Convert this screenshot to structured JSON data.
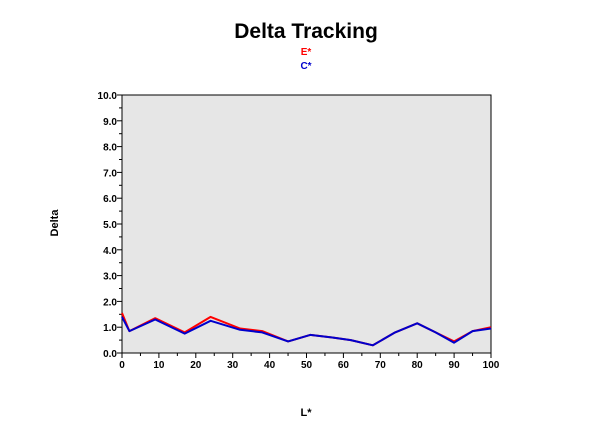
{
  "chart_data": {
    "type": "line",
    "title": "Delta Tracking",
    "xlabel": "L*",
    "ylabel": "Delta",
    "xlim": [
      0,
      100
    ],
    "ylim": [
      0,
      10
    ],
    "x_ticks": [
      "0",
      "10",
      "20",
      "30",
      "40",
      "50",
      "60",
      "70",
      "80",
      "90",
      "100"
    ],
    "y_ticks": [
      "0.0",
      "1.0",
      "2.0",
      "3.0",
      "4.0",
      "5.0",
      "6.0",
      "7.0",
      "8.0",
      "9.0",
      "10.0"
    ],
    "grid": false,
    "legend_position": "top-center",
    "series": [
      {
        "name": "E*",
        "color": "#ff0000",
        "x": [
          0,
          2,
          9,
          17,
          24,
          32,
          38,
          45,
          51,
          57,
          62,
          68,
          74,
          80,
          85,
          90,
          95,
          100
        ],
        "y": [
          1.55,
          0.85,
          1.35,
          0.8,
          1.4,
          0.95,
          0.85,
          0.45,
          0.7,
          0.6,
          0.5,
          0.3,
          0.8,
          1.15,
          0.8,
          0.45,
          0.85,
          1.0
        ]
      },
      {
        "name": "C*",
        "color": "#0000cc",
        "x": [
          0,
          2,
          9,
          17,
          24,
          32,
          38,
          45,
          51,
          57,
          62,
          68,
          74,
          80,
          85,
          90,
          95,
          100
        ],
        "y": [
          1.4,
          0.85,
          1.3,
          0.75,
          1.25,
          0.9,
          0.8,
          0.45,
          0.7,
          0.6,
          0.5,
          0.3,
          0.8,
          1.15,
          0.8,
          0.4,
          0.85,
          0.95
        ]
      }
    ]
  }
}
